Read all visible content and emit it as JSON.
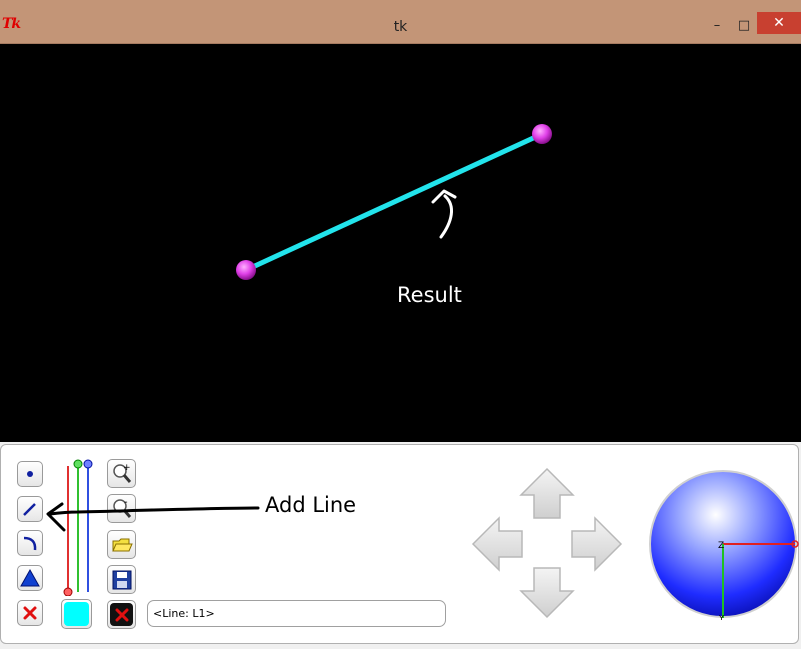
{
  "window": {
    "title": "tk",
    "app_icon_text": "Tk",
    "buttons": {
      "minimize": "–",
      "maximize": "□",
      "close": "✕"
    }
  },
  "canvas": {
    "background": "#000000",
    "line_color": "#22e4ec",
    "point_color": "#e040e8",
    "annotation_result": "Result"
  },
  "toolbar": {
    "tools": [
      {
        "name": "point-tool",
        "icon": "dot-icon"
      },
      {
        "name": "line-tool",
        "icon": "line-icon"
      },
      {
        "name": "arc-tool",
        "icon": "arc-icon"
      },
      {
        "name": "polygon-tool",
        "icon": "triangle-icon"
      },
      {
        "name": "delete-tool",
        "icon": "red-x-icon"
      }
    ],
    "color_swatch": "#00ffff",
    "file_tools": [
      "zoom-in-icon",
      "zoom-out-icon",
      "open-folder-icon",
      "save-icon",
      "close-black-icon"
    ],
    "slider_colors": [
      "#e03030",
      "#30c030",
      "#3050e0"
    ]
  },
  "annotation_add_line": "Add Line",
  "status": {
    "text": "<Line: L1>"
  },
  "orientation": {
    "x_axis_color": "#e02020",
    "y_axis_color": "#20c020",
    "z_label": "Z",
    "y_label": "Y"
  }
}
